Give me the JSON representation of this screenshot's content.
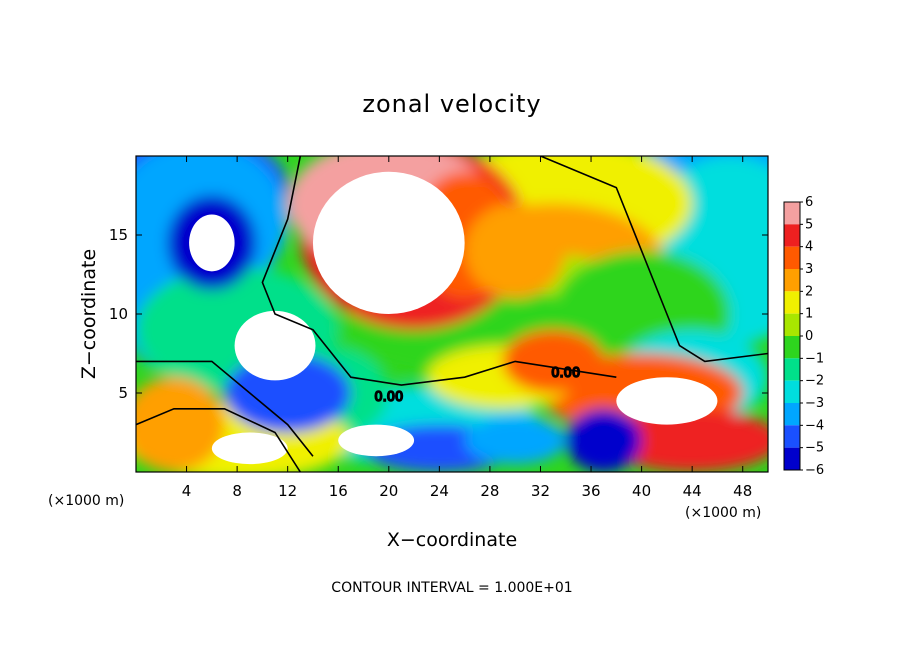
{
  "chart_data": {
    "type": "heatmap",
    "title": "zonal velocity",
    "xlabel": "X−coordinate",
    "ylabel": "Z−coordinate",
    "x_units": "(×1000 m)",
    "xlim": [
      0,
      50
    ],
    "ylim": [
      0,
      20
    ],
    "x_ticks": [
      4,
      8,
      12,
      16,
      20,
      24,
      28,
      32,
      36,
      40,
      44,
      48
    ],
    "y_ticks": [
      5,
      10,
      15
    ],
    "colorbar": {
      "levels": [
        6,
        5,
        4,
        3,
        2,
        1,
        0,
        -1,
        -2,
        -3,
        -4,
        -5,
        -6
      ],
      "labels": [
        "6",
        "5",
        "4",
        "3",
        "2",
        "1",
        "0",
        "−1",
        "−2",
        "−3",
        "−4",
        "−5",
        "−6"
      ],
      "colors": [
        "#f4a0a0",
        "#ee2020",
        "#ff5a00",
        "#ff9f00",
        "#f0f000",
        "#a8e600",
        "#2ed51e",
        "#00e08a",
        "#00dede",
        "#00a6ff",
        "#1a50ff",
        "#0000cc",
        "#6a00a8"
      ]
    },
    "contour_labels": [
      "0.00",
      "0.00"
    ],
    "grid": false,
    "legend": "right (colorbar)",
    "annotation": "CONTOUR INTERVAL = 1.000E+01"
  }
}
